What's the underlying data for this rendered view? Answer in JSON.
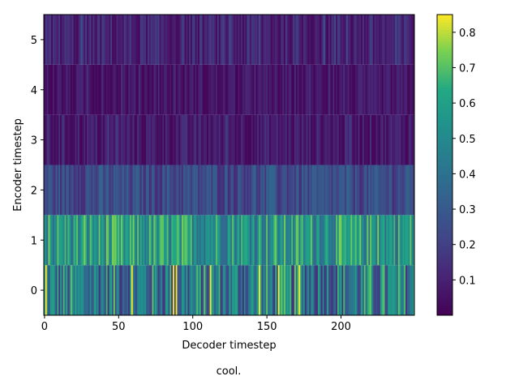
{
  "chart_data": {
    "type": "heatmap",
    "xlabel": "Decoder timestep",
    "ylabel": "Encoder timestep",
    "caption": "cool.",
    "x_ticks": [
      0,
      50,
      100,
      150,
      200
    ],
    "y_ticks": [
      0,
      1,
      2,
      3,
      4,
      5
    ],
    "xlim": [
      -0.5,
      249.5
    ],
    "ylim": [
      -0.5,
      5.5
    ],
    "n_decoder_steps": 250,
    "encoder_rows": [
      0,
      1,
      2,
      3,
      4,
      5
    ],
    "row_mean_values": [
      0.42,
      0.55,
      0.24,
      0.08,
      0.06,
      0.1
    ],
    "row_value_ranges": [
      [
        0.15,
        0.85
      ],
      [
        0.3,
        0.75
      ],
      [
        0.1,
        0.35
      ],
      [
        0.02,
        0.2
      ],
      [
        0.01,
        0.15
      ],
      [
        0.03,
        0.25
      ]
    ],
    "colorbar": {
      "colormap": "viridis",
      "min": 0.0,
      "max": 0.85,
      "ticks": [
        0.1,
        0.2,
        0.3,
        0.4,
        0.5,
        0.6,
        0.7,
        0.8
      ],
      "tick_labels": [
        "0.1",
        "0.2",
        "0.3",
        "0.4",
        "0.5",
        "0.6",
        "0.7",
        "0.8"
      ]
    }
  }
}
